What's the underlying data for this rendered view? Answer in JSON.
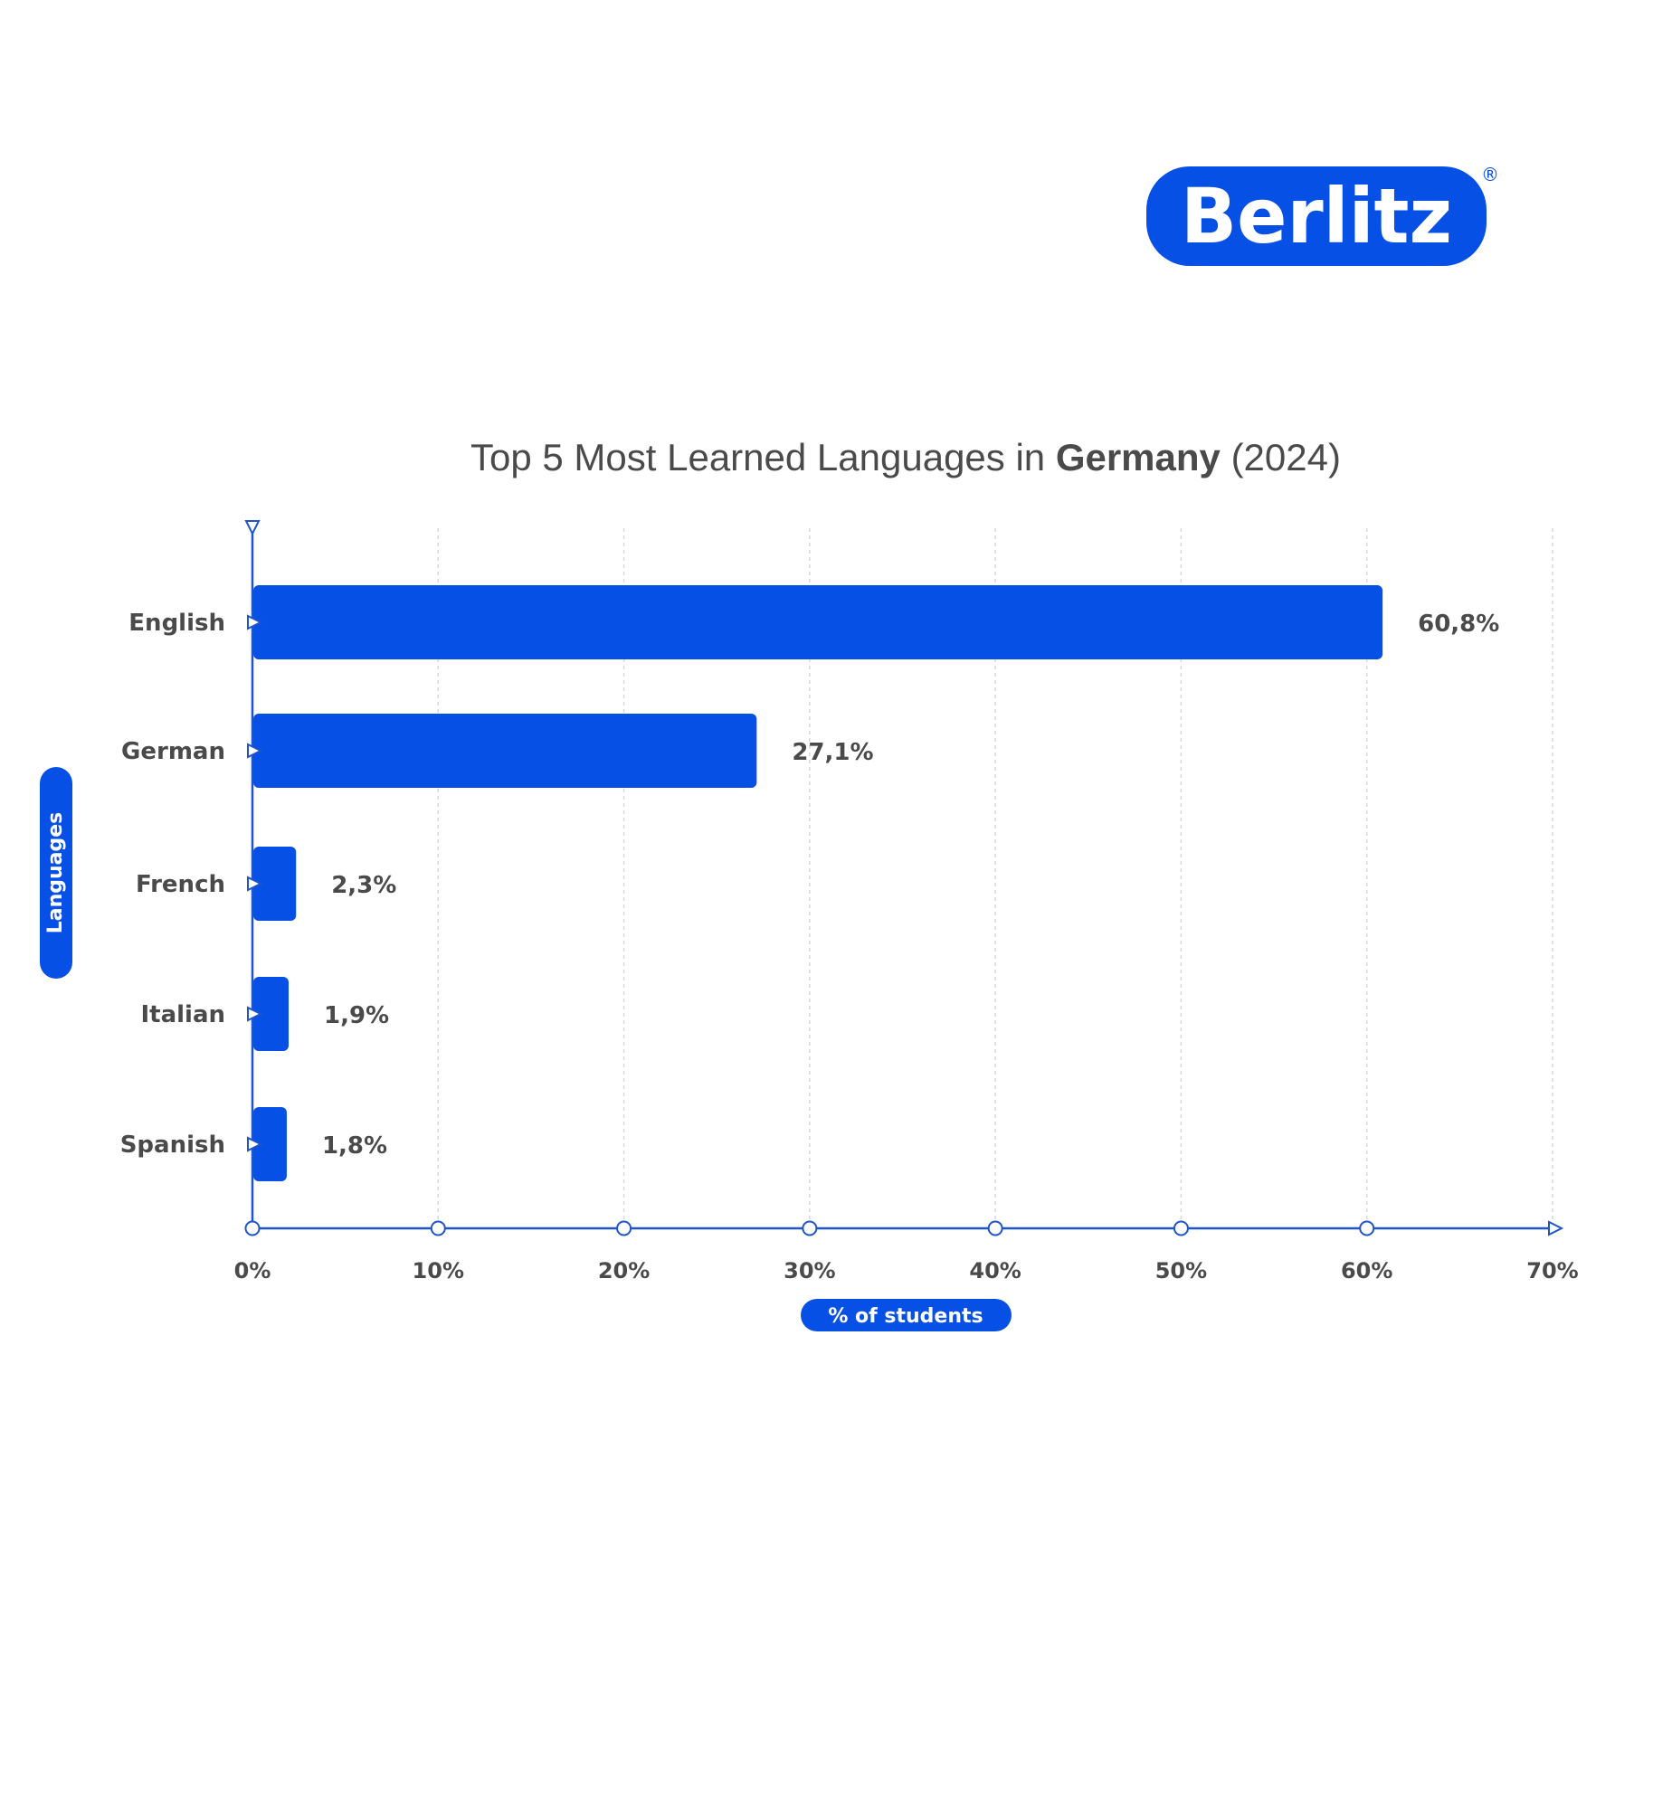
{
  "brand": {
    "logo_text": "Berlitz",
    "registered_mark": "®",
    "color": "#0750E5"
  },
  "chart_data": {
    "type": "bar",
    "orientation": "horizontal",
    "title": {
      "prefix": "Top 5 Most Learned Languages in ",
      "emphasis": "Germany",
      "suffix": " (2024)"
    },
    "categories": [
      "English",
      "German",
      "French",
      "Italian",
      "Spanish"
    ],
    "values": [
      60.8,
      27.1,
      2.3,
      1.9,
      1.8
    ],
    "value_labels": [
      "60,8%",
      "27,1%",
      "2,3%",
      "1,9%",
      "1,8%"
    ],
    "xlabel": "% of students",
    "ylabel": "Languages",
    "xlim": [
      0,
      70
    ],
    "x_ticks": [
      0,
      10,
      20,
      30,
      40,
      50,
      60,
      70
    ],
    "x_tick_labels": [
      "0%",
      "10%",
      "20%",
      "30%",
      "40%",
      "50%",
      "60%",
      "70%"
    ],
    "grid": "vertical dashed",
    "legend": "none",
    "colors": {
      "bar": "#0750E5",
      "axis": "#1F55C8",
      "text": "#4A4A4A",
      "grid": "#D9D9D9"
    }
  }
}
